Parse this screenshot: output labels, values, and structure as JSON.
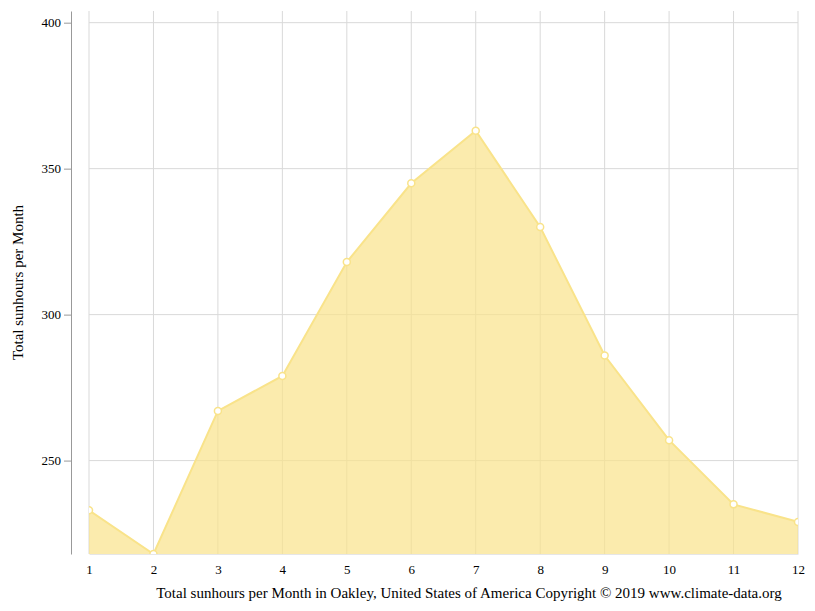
{
  "chart_data": {
    "type": "area",
    "xlabel": "Total sunhours per Month in Oakley, United States of America Copyright © 2019 www.climate-data.org",
    "ylabel": "Total sunhours per Month",
    "x": [
      1,
      2,
      3,
      4,
      5,
      6,
      7,
      8,
      9,
      10,
      11,
      12
    ],
    "values": [
      233,
      218,
      267,
      279,
      318,
      345,
      363,
      330,
      286,
      257,
      235,
      229
    ],
    "color": "#f9e38a",
    "marker": "circle",
    "xlim": [
      1,
      12
    ],
    "xticks": [
      1,
      2,
      3,
      4,
      5,
      6,
      7,
      8,
      9,
      10,
      11,
      12
    ],
    "ylim": [
      218,
      404
    ],
    "yticks": [
      250,
      300,
      350,
      400
    ],
    "grid": true
  }
}
